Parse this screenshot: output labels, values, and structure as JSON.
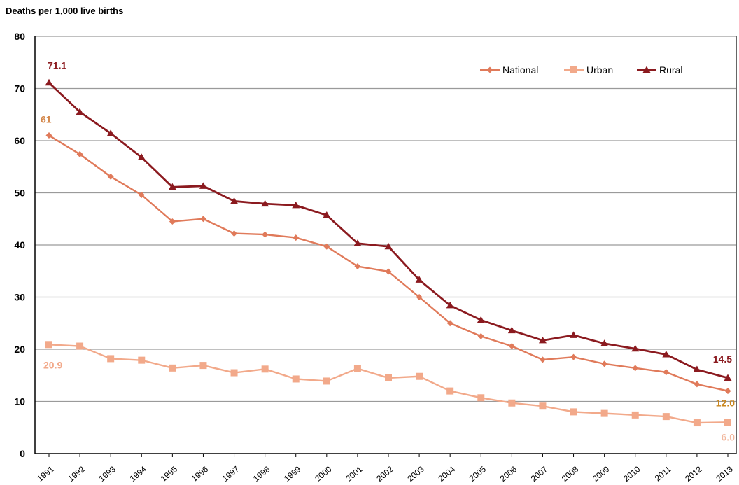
{
  "chart_data": {
    "type": "line",
    "title": "",
    "ylabel": "Deaths per 1,000 live births",
    "xlabel": "",
    "ylim": [
      0,
      80
    ],
    "yticks": [
      0,
      10,
      20,
      30,
      40,
      50,
      60,
      70,
      80
    ],
    "grid": "horizontal",
    "legend_position": "top-right",
    "categories": [
      "1991",
      "1992",
      "1993",
      "1994",
      "1995",
      "1996",
      "1997",
      "1998",
      "1999",
      "2000",
      "2001",
      "2002",
      "2003",
      "2004",
      "2005",
      "2006",
      "2007",
      "2008",
      "2009",
      "2010",
      "2011",
      "2012",
      "2013"
    ],
    "series": [
      {
        "name": "National",
        "color": "#e07a5a",
        "marker": "diamond",
        "values": [
          61.0,
          57.4,
          53.1,
          49.6,
          44.5,
          45.0,
          42.2,
          42.0,
          41.4,
          39.7,
          35.9,
          34.9,
          30.0,
          25.0,
          22.5,
          20.6,
          18.0,
          18.5,
          17.2,
          16.4,
          15.6,
          13.3,
          12.0
        ]
      },
      {
        "name": "Urban",
        "color": "#f2a98a",
        "marker": "square",
        "values": [
          20.9,
          20.6,
          18.2,
          17.9,
          16.4,
          16.9,
          15.5,
          16.2,
          14.3,
          13.9,
          16.3,
          14.5,
          14.8,
          12.0,
          10.7,
          9.7,
          9.1,
          8.0,
          7.7,
          7.4,
          7.1,
          5.9,
          6.0
        ]
      },
      {
        "name": "Rural",
        "color": "#8b1a1f",
        "marker": "triangle",
        "values": [
          71.1,
          65.5,
          61.4,
          56.8,
          51.1,
          51.3,
          48.4,
          47.9,
          47.6,
          45.7,
          40.3,
          39.7,
          33.3,
          28.4,
          25.6,
          23.6,
          21.7,
          22.7,
          21.1,
          20.1,
          19.0,
          16.1,
          14.5
        ]
      }
    ],
    "annotations": [
      {
        "text": "71.1",
        "series": "Rural",
        "index": 0,
        "color": "#8b1a1f"
      },
      {
        "text": "61",
        "series": "National",
        "index": 0,
        "color": "#d4874a"
      },
      {
        "text": "20.9",
        "series": "Urban",
        "index": 0,
        "color": "#f2a98a"
      },
      {
        "text": "14.5",
        "series": "Rural",
        "index": 22,
        "color": "#8b1a1f"
      },
      {
        "text": "12.0",
        "series": "National",
        "index": 22,
        "color": "#c9861e"
      },
      {
        "text": "6.0",
        "series": "Urban",
        "index": 22,
        "color": "#f2b99f"
      }
    ]
  }
}
